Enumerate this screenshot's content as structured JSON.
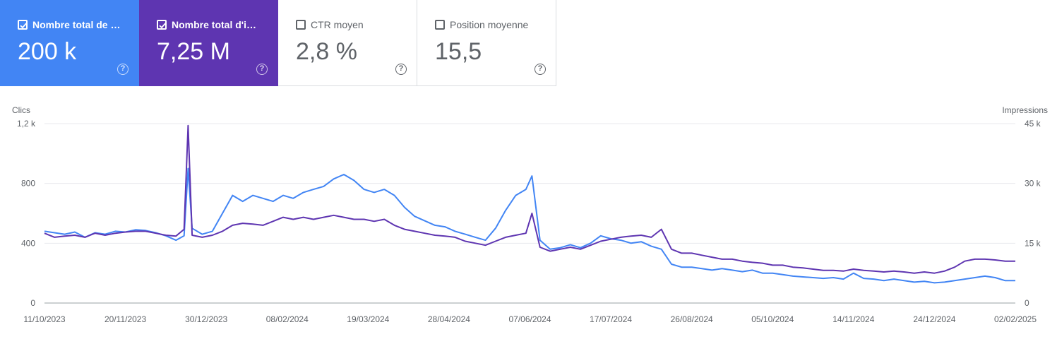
{
  "cards": [
    {
      "label": "Nombre total de clics",
      "short": "Nombre total de c…",
      "value": "200 k",
      "checked": true,
      "color": "#4285f4"
    },
    {
      "label": "Nombre total d'impressions",
      "short": "Nombre total d'im…",
      "value": "7,25 M",
      "checked": true,
      "color": "#5e35b1"
    },
    {
      "label": "CTR moyen",
      "short": "CTR moyen",
      "value": "2,8 %",
      "checked": false,
      "color": "#ffffff"
    },
    {
      "label": "Position moyenne",
      "short": "Position moyenne",
      "value": "15,5",
      "checked": false,
      "color": "#ffffff"
    }
  ],
  "help_glyph": "?",
  "chart_data": {
    "type": "line",
    "left_axis_title": "Clics",
    "right_axis_title": "Impressions",
    "left_ticks": [
      {
        "v": 0,
        "t": "0"
      },
      {
        "v": 400,
        "t": "400"
      },
      {
        "v": 800,
        "t": "800"
      },
      {
        "v": 1200,
        "t": "1,2 k"
      }
    ],
    "right_ticks": [
      {
        "v": 0,
        "t": "0"
      },
      {
        "v": 15000,
        "t": "15 k"
      },
      {
        "v": 30000,
        "t": "30 k"
      },
      {
        "v": 45000,
        "t": "45 k"
      }
    ],
    "ylim_left": [
      0,
      1200
    ],
    "ylim_right": [
      0,
      45000
    ],
    "x_range": [
      "2023-10-11",
      "2025-02-02"
    ],
    "x_ticks": [
      "11/10/2023",
      "20/11/2023",
      "30/12/2023",
      "08/02/2024",
      "19/03/2024",
      "28/04/2024",
      "07/06/2024",
      "17/07/2024",
      "26/08/2024",
      "05/10/2024",
      "14/11/2024",
      "24/12/2024",
      "02/02/2025"
    ],
    "grid": true,
    "series": [
      {
        "name": "Clics",
        "axis": "left",
        "color": "#4285f4",
        "points": [
          [
            "2023-10-11",
            480
          ],
          [
            "2023-10-16",
            470
          ],
          [
            "2023-10-21",
            460
          ],
          [
            "2023-10-26",
            475
          ],
          [
            "2023-10-31",
            440
          ],
          [
            "2023-11-05",
            470
          ],
          [
            "2023-11-10",
            460
          ],
          [
            "2023-11-15",
            480
          ],
          [
            "2023-11-20",
            475
          ],
          [
            "2023-11-25",
            490
          ],
          [
            "2023-11-30",
            485
          ],
          [
            "2023-12-05",
            470
          ],
          [
            "2023-12-10",
            450
          ],
          [
            "2023-12-15",
            420
          ],
          [
            "2023-12-19",
            450
          ],
          [
            "2023-12-21",
            900
          ],
          [
            "2023-12-23",
            500
          ],
          [
            "2023-12-28",
            460
          ],
          [
            "2024-01-02",
            480
          ],
          [
            "2024-01-07",
            600
          ],
          [
            "2024-01-12",
            720
          ],
          [
            "2024-01-17",
            680
          ],
          [
            "2024-01-22",
            720
          ],
          [
            "2024-01-27",
            700
          ],
          [
            "2024-02-01",
            680
          ],
          [
            "2024-02-06",
            720
          ],
          [
            "2024-02-11",
            700
          ],
          [
            "2024-02-16",
            740
          ],
          [
            "2024-02-21",
            760
          ],
          [
            "2024-02-26",
            780
          ],
          [
            "2024-03-02",
            830
          ],
          [
            "2024-03-07",
            860
          ],
          [
            "2024-03-12",
            820
          ],
          [
            "2024-03-17",
            760
          ],
          [
            "2024-03-22",
            740
          ],
          [
            "2024-03-27",
            760
          ],
          [
            "2024-04-01",
            720
          ],
          [
            "2024-04-06",
            640
          ],
          [
            "2024-04-11",
            580
          ],
          [
            "2024-04-16",
            550
          ],
          [
            "2024-04-21",
            520
          ],
          [
            "2024-04-26",
            510
          ],
          [
            "2024-05-01",
            480
          ],
          [
            "2024-05-06",
            460
          ],
          [
            "2024-05-11",
            440
          ],
          [
            "2024-05-16",
            420
          ],
          [
            "2024-05-21",
            500
          ],
          [
            "2024-05-26",
            620
          ],
          [
            "2024-05-31",
            720
          ],
          [
            "2024-06-05",
            760
          ],
          [
            "2024-06-08",
            850
          ],
          [
            "2024-06-12",
            420
          ],
          [
            "2024-06-17",
            360
          ],
          [
            "2024-06-22",
            370
          ],
          [
            "2024-06-27",
            390
          ],
          [
            "2024-07-02",
            370
          ],
          [
            "2024-07-07",
            400
          ],
          [
            "2024-07-12",
            450
          ],
          [
            "2024-07-17",
            430
          ],
          [
            "2024-07-22",
            420
          ],
          [
            "2024-07-27",
            400
          ],
          [
            "2024-08-01",
            410
          ],
          [
            "2024-08-06",
            380
          ],
          [
            "2024-08-11",
            360
          ],
          [
            "2024-08-16",
            260
          ],
          [
            "2024-08-21",
            240
          ],
          [
            "2024-08-26",
            240
          ],
          [
            "2024-08-31",
            230
          ],
          [
            "2024-09-05",
            220
          ],
          [
            "2024-09-10",
            230
          ],
          [
            "2024-09-15",
            220
          ],
          [
            "2024-09-20",
            210
          ],
          [
            "2024-09-25",
            220
          ],
          [
            "2024-09-30",
            200
          ],
          [
            "2024-10-05",
            200
          ],
          [
            "2024-10-10",
            190
          ],
          [
            "2024-10-15",
            180
          ],
          [
            "2024-10-20",
            175
          ],
          [
            "2024-10-25",
            170
          ],
          [
            "2024-10-30",
            165
          ],
          [
            "2024-11-04",
            170
          ],
          [
            "2024-11-09",
            160
          ],
          [
            "2024-11-14",
            200
          ],
          [
            "2024-11-19",
            165
          ],
          [
            "2024-11-24",
            160
          ],
          [
            "2024-11-29",
            150
          ],
          [
            "2024-12-04",
            160
          ],
          [
            "2024-12-09",
            150
          ],
          [
            "2024-12-14",
            140
          ],
          [
            "2024-12-19",
            145
          ],
          [
            "2024-12-24",
            135
          ],
          [
            "2024-12-29",
            140
          ],
          [
            "2025-01-03",
            150
          ],
          [
            "2025-01-08",
            160
          ],
          [
            "2025-01-13",
            170
          ],
          [
            "2025-01-18",
            180
          ],
          [
            "2025-01-23",
            170
          ],
          [
            "2025-01-28",
            150
          ],
          [
            "2025-02-02",
            150
          ]
        ]
      },
      {
        "name": "Impressions",
        "axis": "right",
        "color": "#5e35b1",
        "points": [
          [
            "2023-10-11",
            17500
          ],
          [
            "2023-10-16",
            16500
          ],
          [
            "2023-10-21",
            16800
          ],
          [
            "2023-10-26",
            17000
          ],
          [
            "2023-10-31",
            16500
          ],
          [
            "2023-11-05",
            17500
          ],
          [
            "2023-11-10",
            17000
          ],
          [
            "2023-11-15",
            17500
          ],
          [
            "2023-11-20",
            17800
          ],
          [
            "2023-11-25",
            18000
          ],
          [
            "2023-11-30",
            18000
          ],
          [
            "2023-12-05",
            17500
          ],
          [
            "2023-12-10",
            17000
          ],
          [
            "2023-12-15",
            16800
          ],
          [
            "2023-12-19",
            18500
          ],
          [
            "2023-12-21",
            44500
          ],
          [
            "2023-12-23",
            17000
          ],
          [
            "2023-12-28",
            16500
          ],
          [
            "2024-01-02",
            17000
          ],
          [
            "2024-01-07",
            18000
          ],
          [
            "2024-01-12",
            19500
          ],
          [
            "2024-01-17",
            20000
          ],
          [
            "2024-01-22",
            19800
          ],
          [
            "2024-01-27",
            19500
          ],
          [
            "2024-02-01",
            20500
          ],
          [
            "2024-02-06",
            21500
          ],
          [
            "2024-02-11",
            21000
          ],
          [
            "2024-02-16",
            21500
          ],
          [
            "2024-02-21",
            21000
          ],
          [
            "2024-02-26",
            21500
          ],
          [
            "2024-03-02",
            22000
          ],
          [
            "2024-03-07",
            21500
          ],
          [
            "2024-03-12",
            21000
          ],
          [
            "2024-03-17",
            21000
          ],
          [
            "2024-03-22",
            20500
          ],
          [
            "2024-03-27",
            21000
          ],
          [
            "2024-04-01",
            19500
          ],
          [
            "2024-04-06",
            18500
          ],
          [
            "2024-04-11",
            18000
          ],
          [
            "2024-04-16",
            17500
          ],
          [
            "2024-04-21",
            17000
          ],
          [
            "2024-04-26",
            16800
          ],
          [
            "2024-05-01",
            16500
          ],
          [
            "2024-05-06",
            15500
          ],
          [
            "2024-05-11",
            15000
          ],
          [
            "2024-05-16",
            14500
          ],
          [
            "2024-05-21",
            15500
          ],
          [
            "2024-05-26",
            16500
          ],
          [
            "2024-05-31",
            17000
          ],
          [
            "2024-06-05",
            17500
          ],
          [
            "2024-06-08",
            22500
          ],
          [
            "2024-06-12",
            14000
          ],
          [
            "2024-06-17",
            13000
          ],
          [
            "2024-06-22",
            13500
          ],
          [
            "2024-06-27",
            14000
          ],
          [
            "2024-07-02",
            13500
          ],
          [
            "2024-07-07",
            14500
          ],
          [
            "2024-07-12",
            15500
          ],
          [
            "2024-07-17",
            16000
          ],
          [
            "2024-07-22",
            16500
          ],
          [
            "2024-07-27",
            16800
          ],
          [
            "2024-08-01",
            17000
          ],
          [
            "2024-08-06",
            16500
          ],
          [
            "2024-08-11",
            18500
          ],
          [
            "2024-08-16",
            13500
          ],
          [
            "2024-08-21",
            12500
          ],
          [
            "2024-08-26",
            12500
          ],
          [
            "2024-08-31",
            12000
          ],
          [
            "2024-09-05",
            11500
          ],
          [
            "2024-09-10",
            11000
          ],
          [
            "2024-09-15",
            11000
          ],
          [
            "2024-09-20",
            10500
          ],
          [
            "2024-09-25",
            10200
          ],
          [
            "2024-09-30",
            10000
          ],
          [
            "2024-10-05",
            9500
          ],
          [
            "2024-10-10",
            9500
          ],
          [
            "2024-10-15",
            9000
          ],
          [
            "2024-10-20",
            8800
          ],
          [
            "2024-10-25",
            8500
          ],
          [
            "2024-10-30",
            8200
          ],
          [
            "2024-11-04",
            8200
          ],
          [
            "2024-11-09",
            8000
          ],
          [
            "2024-11-14",
            8500
          ],
          [
            "2024-11-19",
            8200
          ],
          [
            "2024-11-24",
            8000
          ],
          [
            "2024-11-29",
            7800
          ],
          [
            "2024-12-04",
            8000
          ],
          [
            "2024-12-09",
            7800
          ],
          [
            "2024-12-14",
            7500
          ],
          [
            "2024-12-19",
            7800
          ],
          [
            "2024-12-24",
            7500
          ],
          [
            "2024-12-29",
            8000
          ],
          [
            "2025-01-03",
            9000
          ],
          [
            "2025-01-08",
            10500
          ],
          [
            "2025-01-13",
            11000
          ],
          [
            "2025-01-18",
            11000
          ],
          [
            "2025-01-23",
            10800
          ],
          [
            "2025-01-28",
            10500
          ],
          [
            "2025-02-02",
            10500
          ]
        ]
      }
    ]
  }
}
